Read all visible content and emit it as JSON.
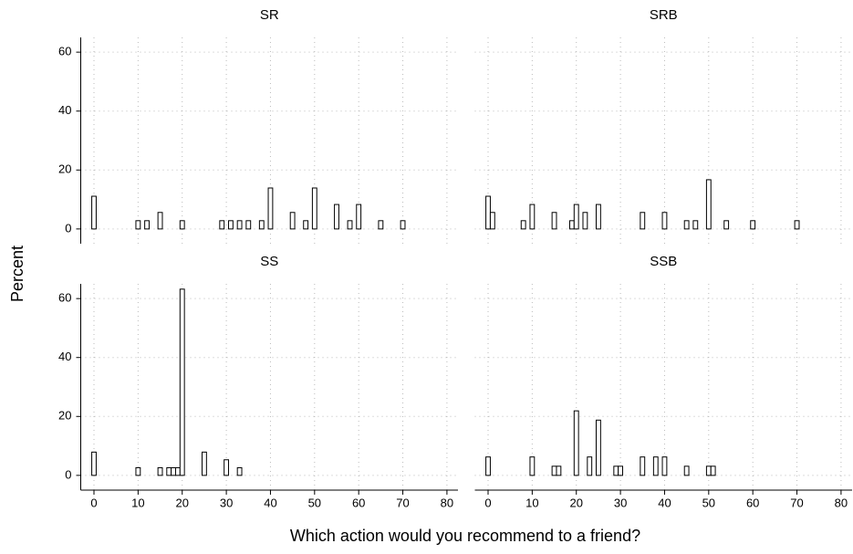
{
  "x_label": "Which action would you recommend to a friend?",
  "y_label": "Percent",
  "chart_data": [
    {
      "type": "bar",
      "title": "SR",
      "x": [
        0,
        10,
        12,
        15,
        20,
        29,
        31,
        33,
        35,
        38,
        40,
        45,
        48,
        50,
        55,
        58,
        60,
        65,
        70
      ],
      "values": [
        11.1,
        2.8,
        2.8,
        5.6,
        2.8,
        2.8,
        2.8,
        2.8,
        2.8,
        2.8,
        13.9,
        5.6,
        2.8,
        13.9,
        8.3,
        2.8,
        8.3,
        2.8,
        2.8
      ],
      "xlim": [
        -3,
        82.5
      ],
      "ylim": [
        -5,
        65
      ],
      "xticks": [
        0,
        10,
        20,
        30,
        40,
        50,
        60,
        70,
        80
      ],
      "yticks": [
        0,
        20,
        40,
        60
      ],
      "grid": true,
      "color": "#ffffff"
    },
    {
      "type": "bar",
      "title": "SRB",
      "x": [
        0,
        1,
        8,
        10,
        15,
        19,
        20,
        22,
        25,
        35,
        40,
        45,
        47,
        50,
        54,
        60,
        70
      ],
      "values": [
        11.1,
        5.6,
        2.8,
        8.3,
        5.6,
        2.8,
        8.3,
        5.6,
        8.3,
        5.6,
        5.6,
        2.8,
        2.8,
        16.7,
        2.8,
        2.8,
        2.8
      ],
      "xlim": [
        -3,
        82.5
      ],
      "ylim": [
        -5,
        65
      ],
      "xticks": [
        0,
        10,
        20,
        30,
        40,
        50,
        60,
        70,
        80
      ],
      "yticks": [
        0,
        20,
        40,
        60
      ],
      "grid": true,
      "color": "#ffffff"
    },
    {
      "type": "bar",
      "title": "SS",
      "x": [
        0,
        10,
        15,
        17,
        18,
        19,
        20,
        25,
        30,
        33
      ],
      "values": [
        7.9,
        2.6,
        2.6,
        2.6,
        2.6,
        2.6,
        63.2,
        7.9,
        5.3,
        2.6
      ],
      "xlim": [
        -3,
        82.5
      ],
      "ylim": [
        -5,
        65
      ],
      "xticks": [
        0,
        10,
        20,
        30,
        40,
        50,
        60,
        70,
        80
      ],
      "yticks": [
        0,
        20,
        40,
        60
      ],
      "grid": true,
      "color": "#ffffff"
    },
    {
      "type": "bar",
      "title": "SSB",
      "x": [
        0,
        10,
        15,
        16,
        20,
        23,
        25,
        29,
        30,
        35,
        38,
        40,
        45,
        50,
        51
      ],
      "values": [
        6.25,
        6.25,
        3.1,
        3.1,
        21.9,
        6.25,
        18.75,
        3.1,
        3.1,
        6.25,
        6.25,
        6.25,
        3.1,
        3.1,
        3.1
      ],
      "xlim": [
        -3,
        82.5
      ],
      "ylim": [
        -5,
        65
      ],
      "xticks": [
        0,
        10,
        20,
        30,
        40,
        50,
        60,
        70,
        80
      ],
      "yticks": [
        0,
        20,
        40,
        60
      ],
      "grid": true,
      "color": "#ffffff"
    }
  ]
}
